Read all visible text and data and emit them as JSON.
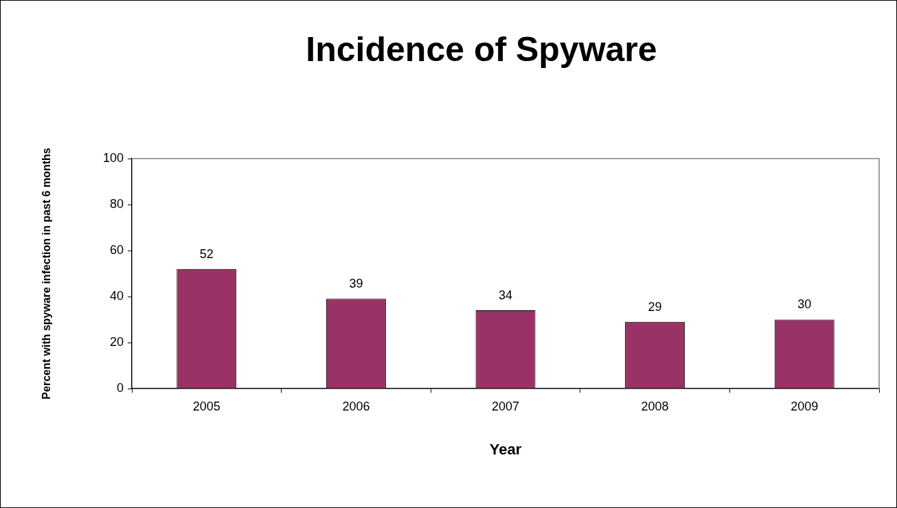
{
  "chart_data": {
    "type": "bar",
    "title": "Incidence of Spyware",
    "xlabel": "Year",
    "ylabel": "Percent with spyware infection in past 6 months",
    "categories": [
      "2005",
      "2006",
      "2007",
      "2008",
      "2009"
    ],
    "values": [
      52,
      39,
      34,
      29,
      30
    ],
    "color": "#993366",
    "ylim": [
      0,
      100
    ],
    "yticks": [
      0,
      20,
      40,
      60,
      80,
      100
    ],
    "data_labels": true
  }
}
